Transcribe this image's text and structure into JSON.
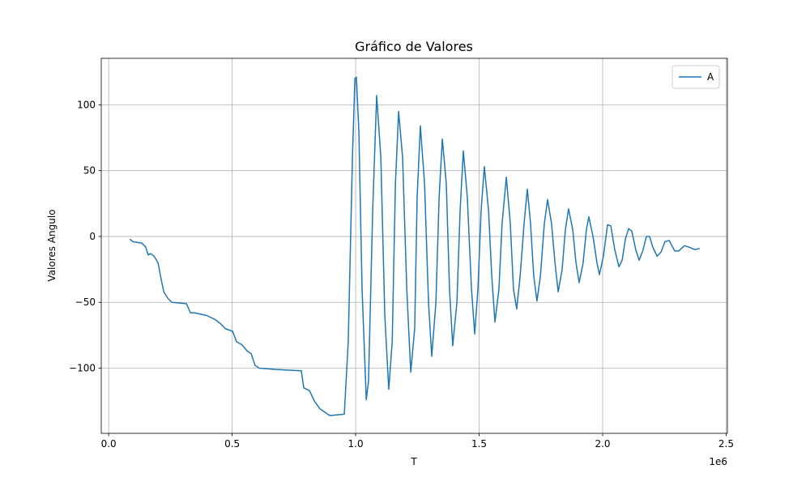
{
  "chart_data": {
    "type": "line",
    "title": "Gráfico de Valores",
    "xlabel": "T",
    "ylabel": "Valores Angulo",
    "x_offset_text": "1e6",
    "x": [
      85000,
      100000,
      134000,
      150000,
      160000,
      170000,
      184000,
      200000,
      210000,
      223000,
      240000,
      256000,
      315000,
      331000,
      348000,
      397000,
      430000,
      452000,
      472000,
      502000,
      518000,
      538000,
      561000,
      577000,
      593000,
      610000,
      675000,
      780000,
      790000,
      813000,
      833000,
      856000,
      872000,
      895000,
      954000,
      970000,
      987000,
      997000,
      1003000,
      1013000,
      1026000,
      1043000,
      1052000,
      1069000,
      1085000,
      1102000,
      1118000,
      1134000,
      1148000,
      1161000,
      1174000,
      1190000,
      1207000,
      1223000,
      1239000,
      1249000,
      1262000,
      1279000,
      1295000,
      1308000,
      1325000,
      1338000,
      1351000,
      1367000,
      1380000,
      1393000,
      1410000,
      1423000,
      1436000,
      1452000,
      1469000,
      1482000,
      1495000,
      1508000,
      1521000,
      1538000,
      1551000,
      1564000,
      1580000,
      1593000,
      1610000,
      1626000,
      1639000,
      1652000,
      1666000,
      1682000,
      1695000,
      1708000,
      1721000,
      1734000,
      1748000,
      1764000,
      1777000,
      1793000,
      1807000,
      1820000,
      1836000,
      1849000,
      1862000,
      1879000,
      1892000,
      1905000,
      1921000,
      1934000,
      1944000,
      1961000,
      1977000,
      1987000,
      2003000,
      2020000,
      2033000,
      2049000,
      2066000,
      2079000,
      2092000,
      2105000,
      2118000,
      2134000,
      2148000,
      2164000,
      2177000,
      2190000,
      2203000,
      2220000,
      2236000,
      2252000,
      2269000,
      2292000,
      2308000,
      2331000,
      2348000,
      2374000,
      2393000
    ],
    "series": [
      {
        "name": "A",
        "color": "#1f77b4",
        "values": [
          -2,
          -4,
          -5,
          -8,
          -14,
          -13,
          -15,
          -20,
          -30,
          -42,
          -47,
          -50,
          -51,
          -58,
          -58,
          -60,
          -63,
          -66,
          -70,
          -72,
          -80,
          -82,
          -87,
          -89,
          -98,
          -100,
          -101,
          -102,
          -115,
          -117,
          -125,
          -131,
          -133,
          -136,
          -135,
          -80,
          60,
          120,
          121,
          80,
          -40,
          -124,
          -110,
          20,
          107,
          60,
          -60,
          -116,
          -80,
          40,
          95,
          60,
          -40,
          -103,
          -70,
          30,
          84,
          40,
          -50,
          -91,
          -50,
          30,
          74,
          40,
          -40,
          -83,
          -50,
          20,
          65,
          30,
          -40,
          -74,
          -40,
          20,
          53,
          20,
          -30,
          -65,
          -40,
          10,
          45,
          10,
          -40,
          -55,
          -30,
          10,
          36,
          10,
          -30,
          -49,
          -30,
          10,
          28,
          10,
          -20,
          -42,
          -25,
          5,
          21,
          5,
          -20,
          -35,
          -20,
          5,
          15,
          0,
          -20,
          -29,
          -15,
          9,
          8,
          -10,
          -23,
          -18,
          -2,
          6,
          4,
          -10,
          -18,
          -10,
          0,
          0,
          -8,
          -15,
          -12,
          -4,
          -3,
          -11,
          -11,
          -7,
          -8,
          -10,
          -9
        ]
      }
    ],
    "xlim": [
      -30000,
      2505000
    ],
    "ylim": [
      -149.5,
      135.3
    ],
    "xticks": [
      {
        "value": 0,
        "label": "0.0"
      },
      {
        "value": 500000,
        "label": "0.5"
      },
      {
        "value": 1000000,
        "label": "1.0"
      },
      {
        "value": 1500000,
        "label": "1.5"
      },
      {
        "value": 2000000,
        "label": "2.0"
      },
      {
        "value": 2500000,
        "label": "2.5"
      }
    ],
    "yticks": [
      {
        "value": -100,
        "label": "−100"
      },
      {
        "value": -50,
        "label": "−50"
      },
      0,
      50,
      100
    ],
    "grid": true,
    "legend": "upper right"
  }
}
